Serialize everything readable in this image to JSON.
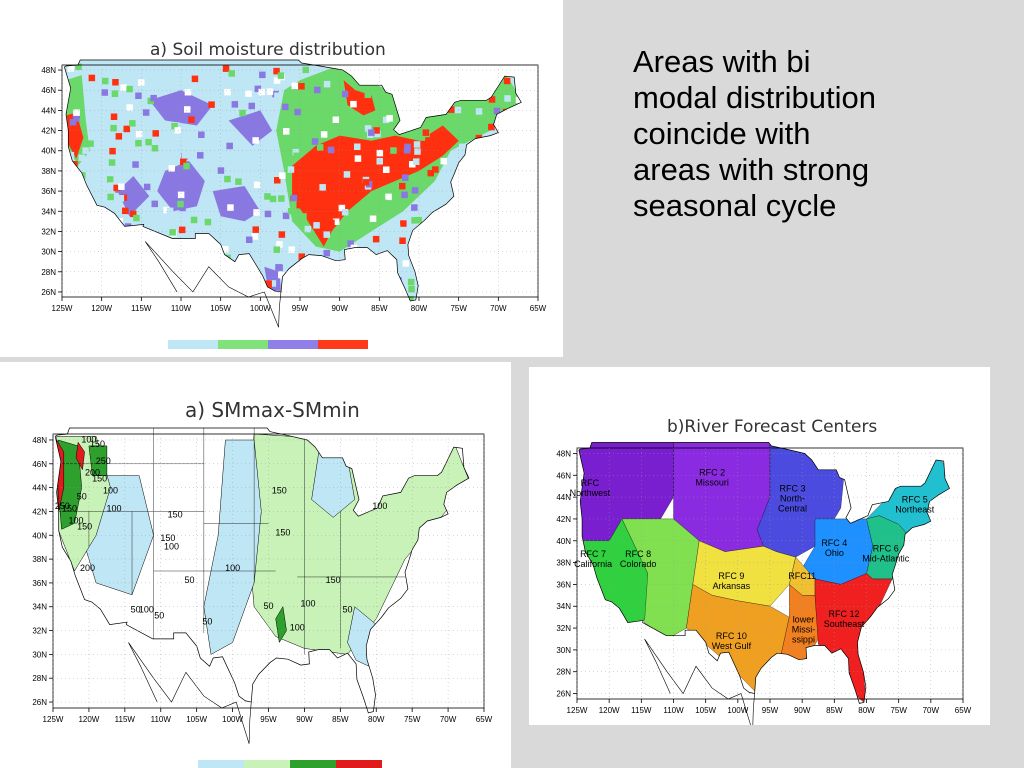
{
  "slide_text": "Areas with bi\nmodal distribution\ncoincide with\nareas with strong\nseasonal cycle",
  "maps": [
    {
      "id": "soil",
      "title": "a) Soil moisture distribution",
      "lat_ticks": [
        "48N",
        "46N",
        "44N",
        "42N",
        "40N",
        "38N",
        "36N",
        "34N",
        "32N",
        "30N",
        "28N",
        "26N"
      ],
      "lon_ticks": [
        "125W",
        "120W",
        "115W",
        "110W",
        "105W",
        "100W",
        "95W",
        "90W",
        "85W",
        "80W",
        "75W",
        "70W",
        "65W"
      ],
      "legend_colors": [
        "#bfe6f5",
        "#7fe27a",
        "#8f7fe6",
        "#ff3a1a"
      ],
      "colors": {
        "light_blue": "#bfe6f5",
        "green": "#6bd86a",
        "purple": "#8a78e2",
        "red": "#ff3010"
      }
    },
    {
      "id": "smdiff",
      "title": "a) SMmax-SMmin",
      "lat_ticks": [
        "48N",
        "46N",
        "44N",
        "42N",
        "40N",
        "38N",
        "36N",
        "34N",
        "32N",
        "30N",
        "28N",
        "26N"
      ],
      "lon_ticks": [
        "125W",
        "120W",
        "115W",
        "110W",
        "105W",
        "100W",
        "95W",
        "90W",
        "85W",
        "80W",
        "75W",
        "70W",
        "65W"
      ],
      "contour_labels": [
        "100",
        "150",
        "250",
        "200",
        "150",
        "100",
        "50",
        "250",
        "150",
        "100",
        "150",
        "100",
        "200",
        "50",
        "50",
        "100",
        "50",
        "150",
        "150",
        "100",
        "50",
        "100",
        "150",
        "100",
        "50",
        "100",
        "150",
        "50",
        "150",
        "100"
      ],
      "legend_colors": [
        "#bfe6f5",
        "#c8f2b8",
        "#2ea02e",
        "#e01b1b"
      ],
      "colors": {
        "light_blue": "#bfe6f5",
        "light_green": "#c8f2b8",
        "dark_green": "#2ea02e",
        "red": "#e01b1b"
      }
    },
    {
      "id": "rfc",
      "title": "b)River Forecast Centers",
      "lat_ticks": [
        "48N",
        "46N",
        "44N",
        "42N",
        "40N",
        "38N",
        "36N",
        "34N",
        "32N",
        "30N",
        "28N",
        "26N"
      ],
      "lon_ticks": [
        "125W",
        "120W",
        "115W",
        "110W",
        "105W",
        "100W",
        "95W",
        "90W",
        "85W",
        "80W",
        "75W",
        "70W",
        "65W"
      ],
      "regions": [
        {
          "label": "RFC\nNorthwest",
          "color": "#7a1fd0"
        },
        {
          "label": "RFC 2\nMissouri",
          "color": "#8a2be2"
        },
        {
          "label": "RFC 3\nNorth-\nCentral",
          "color": "#4b4be0"
        },
        {
          "label": "RFC 4\nOhio",
          "color": "#1e90ff"
        },
        {
          "label": "RFC 5\nNortheast",
          "color": "#20c0d0"
        },
        {
          "label": "RFC 6\nMid-Atlantic",
          "color": "#20c08a"
        },
        {
          "label": "RFC 7\nCalifornia",
          "color": "#30d040"
        },
        {
          "label": "RFC 8\nColorado",
          "color": "#80e050"
        },
        {
          "label": "RFC 9\nArkansas",
          "color": "#f0e040"
        },
        {
          "label": "RFC 10\nWest Gulf",
          "color": "#f0a020"
        },
        {
          "label": "RFC11",
          "color": "#f0c030"
        },
        {
          "label": "lower\nMissi-\nssippi",
          "color": "#f08020"
        },
        {
          "label": "RFC 12\nSoutheast",
          "color": "#f02020"
        }
      ]
    }
  ]
}
